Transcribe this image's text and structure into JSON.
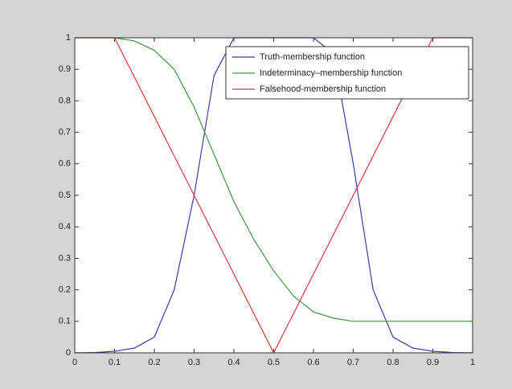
{
  "chart_data": {
    "type": "line",
    "x": [
      0,
      0.05,
      0.1,
      0.15,
      0.2,
      0.25,
      0.3,
      0.35,
      0.4,
      0.45,
      0.5,
      0.55,
      0.6,
      0.65,
      0.7,
      0.75,
      0.8,
      0.85,
      0.9,
      0.95,
      1
    ],
    "series": [
      {
        "name": "Truth-membership function",
        "color": "#3a3aa8",
        "values": [
          0,
          0.001,
          0.005,
          0.015,
          0.05,
          0.2,
          0.5,
          0.88,
          1,
          1,
          1,
          1,
          1,
          0.95,
          0.6,
          0.2,
          0.05,
          0.015,
          0.005,
          0.001,
          0
        ]
      },
      {
        "name": "Indeterminacy–membership function",
        "color": "#3a9a3a",
        "values": [
          1,
          1,
          1,
          0.99,
          0.96,
          0.9,
          0.78,
          0.63,
          0.48,
          0.36,
          0.26,
          0.18,
          0.13,
          0.11,
          0.1,
          0.1,
          0.1,
          0.1,
          0.1,
          0.1,
          0.1
        ]
      },
      {
        "name": "Falsehood-membership function",
        "color": "#d43a3a",
        "values": [
          1,
          1,
          1,
          0.875,
          0.75,
          0.625,
          0.5,
          0.375,
          0.25,
          0.125,
          0,
          0.125,
          0.25,
          0.375,
          0.5,
          0.625,
          0.75,
          0.875,
          1,
          1,
          1
        ]
      }
    ],
    "xlim": [
      0,
      1
    ],
    "xticks": [
      0,
      0.1,
      0.2,
      0.3,
      0.4,
      0.5,
      0.6,
      0.7,
      0.8,
      0.9,
      1
    ],
    "ylim": [
      0,
      1
    ],
    "yticks": [
      0,
      0.1,
      0.2,
      0.3,
      0.4,
      0.5,
      0.6,
      0.7,
      0.8,
      0.9,
      1
    ],
    "legend": "upper right"
  }
}
